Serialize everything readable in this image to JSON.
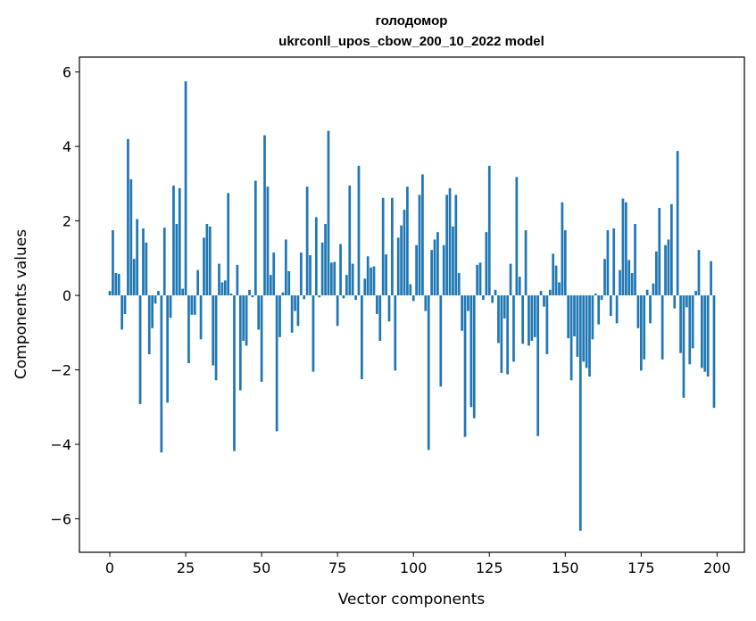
{
  "chart_data": {
    "type": "bar",
    "title": "голодомор",
    "subtitle": "ukrconll_upos_cbow_200_10_2022 model",
    "xlabel": "Vector components",
    "ylabel": "Components values",
    "xlim": [
      -10,
      209
    ],
    "ylim": [
      -6.9,
      6.4
    ],
    "xticks": [
      0,
      25,
      50,
      75,
      100,
      125,
      150,
      175,
      200
    ],
    "yticks": [
      -6,
      -4,
      -2,
      0,
      2,
      4,
      6
    ],
    "xtick_labels": [
      "0",
      "25",
      "50",
      "75",
      "100",
      "125",
      "150",
      "175",
      "200"
    ],
    "ytick_labels": [
      "−6",
      "−4",
      "−2",
      "0",
      "2",
      "4",
      "6"
    ],
    "grid": false,
    "bar_color": "#1f77b4",
    "values": [
      0.12,
      1.75,
      0.6,
      0.58,
      -0.92,
      -0.5,
      4.2,
      3.12,
      0.98,
      2.05,
      -2.92,
      1.8,
      1.42,
      -1.58,
      -0.88,
      -0.22,
      0.12,
      -4.22,
      1.82,
      -2.88,
      -0.6,
      2.95,
      1.92,
      2.88,
      0.18,
      5.75,
      -1.82,
      -0.52,
      -0.52,
      0.68,
      -1.18,
      1.55,
      1.92,
      1.85,
      -1.88,
      -2.28,
      0.85,
      0.35,
      0.4,
      2.75,
      0.05,
      -4.18,
      0.82,
      -2.55,
      -1.22,
      -1.35,
      0.15,
      -0.05,
      3.08,
      -0.92,
      -2.32,
      4.3,
      2.92,
      0.55,
      1.15,
      -3.65,
      -1.12,
      0.08,
      1.5,
      0.65,
      -1.0,
      -0.42,
      -0.82,
      1.15,
      -0.1,
      2.92,
      1.08,
      -2.05,
      2.1,
      -0.05,
      1.42,
      1.92,
      4.42,
      0.88,
      0.9,
      -0.82,
      1.38,
      -0.08,
      0.55,
      2.95,
      0.85,
      -0.12,
      3.48,
      -2.25,
      0.45,
      1.05,
      0.75,
      0.78,
      -0.5,
      -1.22,
      2.62,
      1.1,
      -0.7,
      2.62,
      -2.02,
      1.55,
      1.88,
      2.3,
      2.92,
      0.3,
      -0.15,
      1.35,
      2.7,
      3.25,
      -0.42,
      -4.15,
      1.22,
      1.5,
      1.7,
      -2.45,
      1.35,
      2.7,
      2.88,
      1.85,
      2.7,
      0.6,
      -0.95,
      -3.8,
      -0.42,
      -3.0,
      -3.3,
      0.82,
      0.88,
      -0.12,
      1.7,
      3.48,
      -0.2,
      0.15,
      -1.28,
      -2.08,
      -0.62,
      -2.12,
      0.85,
      -1.78,
      3.18,
      0.5,
      -1.3,
      1.75,
      -1.35,
      -1.22,
      -1.12,
      -3.78,
      0.12,
      -0.3,
      -1.58,
      0.15,
      1.12,
      0.8,
      0.35,
      2.5,
      1.75,
      -1.15,
      -2.28,
      -1.1,
      -1.65,
      -6.32,
      -1.78,
      -1.95,
      -2.18,
      -1.18,
      0.05,
      -0.78,
      -0.12,
      0.98,
      1.75,
      -0.55,
      1.8,
      -0.75,
      0.68,
      2.6,
      2.5,
      0.95,
      0.6,
      1.92,
      -0.88,
      -2.02,
      -1.72,
      0.15,
      -0.75,
      0.32,
      1.18,
      2.35,
      -1.72,
      1.35,
      1.5,
      2.45,
      -0.35,
      3.88,
      -1.55,
      -2.75,
      -0.32,
      -1.85,
      -1.42,
      0.12,
      1.22,
      -1.95,
      -2.05,
      -2.18,
      0.92,
      -3.02
    ]
  }
}
